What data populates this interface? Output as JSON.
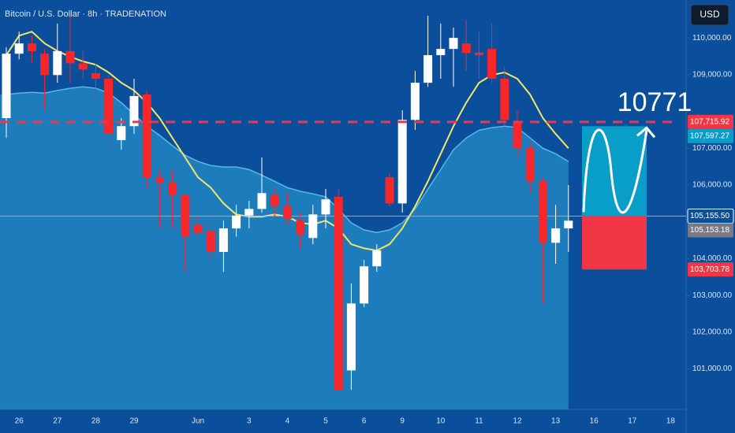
{
  "chart_data": {
    "type": "candlestick",
    "title": "Bitcoin / U.S. Dollar · 8h · TRADENATION",
    "currency": "USD",
    "annotation": "10771",
    "up_color": "#ffffff",
    "down_color": "#f7262a",
    "categories": [
      null,
      "26",
      null,
      null,
      "27",
      null,
      null,
      "28",
      null,
      null,
      "29",
      null,
      null,
      null,
      null,
      "Jun",
      null,
      null,
      null,
      "3",
      null,
      null,
      "4",
      null,
      null,
      "5",
      null,
      null,
      "6",
      null,
      null,
      "9",
      null,
      null,
      "10",
      null,
      null,
      "11",
      null,
      null,
      "12",
      null,
      null,
      "13",
      null,
      null,
      "16",
      null,
      null,
      "17",
      null,
      null,
      "18"
    ],
    "open": [
      107820,
      109570,
      109850,
      109570,
      108990,
      109640,
      109310,
      109040,
      108890,
      107220,
      107600,
      108460,
      106210,
      106060,
      105720,
      104920,
      104750,
      104180,
      104820,
      105170,
      105350,
      105740,
      105420,
      105030,
      104560,
      105200,
      105680,
      100960,
      102780,
      103790,
      106210,
      105500,
      107770,
      108780,
      109530,
      109700,
      109850,
      109600,
      109700,
      108890,
      107710,
      107000,
      106100,
      104430,
      104820,
      null,
      null,
      null,
      null,
      null,
      null,
      null,
      null
    ],
    "high": [
      109740,
      110170,
      110060,
      109700,
      110390,
      110600,
      109640,
      109310,
      108990,
      107820,
      108890,
      108570,
      106420,
      106420,
      105780,
      105140,
      104930,
      105030,
      105460,
      105570,
      106750,
      105890,
      105780,
      105250,
      105460,
      105890,
      105890,
      103320,
      103960,
      104390,
      106320,
      108030,
      109100,
      110600,
      110390,
      110280,
      110490,
      110170,
      110390,
      109210,
      108030,
      107170,
      106210,
      105460,
      106000,
      null,
      null,
      null,
      null,
      null,
      null,
      null,
      null
    ],
    "low": [
      107280,
      109420,
      109310,
      108030,
      108780,
      108780,
      108890,
      108030,
      106960,
      106960,
      107390,
      105890,
      104820,
      104820,
      103640,
      104600,
      103960,
      103640,
      104600,
      104820,
      105250,
      105140,
      104930,
      104280,
      104390,
      104820,
      100430,
      100430,
      102680,
      103640,
      105420,
      105250,
      107500,
      108670,
      108890,
      108670,
      109100,
      108890,
      108780,
      107600,
      106750,
      105780,
      102780,
      103860,
      104180,
      null,
      null,
      null,
      null,
      null,
      null,
      null,
      null
    ],
    "close": [
      109570,
      109850,
      109640,
      108990,
      109640,
      109310,
      109140,
      108890,
      107390,
      107600,
      108420,
      106210,
      106060,
      105720,
      104600,
      104710,
      104180,
      104820,
      105170,
      105350,
      105780,
      105420,
      105080,
      104650,
      105200,
      105610,
      100430,
      102780,
      103790,
      104220,
      105500,
      107770,
      108780,
      109530,
      109700,
      110000,
      109590,
      109530,
      108890,
      107770,
      107000,
      106100,
      104430,
      104820,
      105030,
      null,
      null,
      null,
      null,
      null,
      null,
      null,
      null
    ],
    "indicators": [
      {
        "kind": "area",
        "color": "#5ab8e6",
        "values": [
          108460,
          108500,
          108520,
          108500,
          108570,
          108630,
          108670,
          108630,
          108500,
          108240,
          107920,
          107600,
          107350,
          107070,
          106810,
          106640,
          106530,
          106490,
          106490,
          106420,
          106270,
          106100,
          105930,
          105830,
          105760,
          105680,
          105350,
          104970,
          104780,
          104710,
          104780,
          104970,
          105350,
          105890,
          106420,
          106960,
          107280,
          107490,
          107560,
          107600,
          107560,
          107280,
          107000,
          106850,
          106640,
          null,
          null,
          null,
          null,
          null,
          null,
          null,
          null
        ]
      },
      {
        "kind": "line",
        "color": "#f5e663",
        "values": [
          109530,
          110060,
          110170,
          109850,
          109640,
          109490,
          109360,
          109270,
          109060,
          108780,
          108570,
          108240,
          107820,
          107280,
          106750,
          106210,
          105930,
          105500,
          105200,
          105140,
          105140,
          105200,
          105140,
          104970,
          104930,
          105030,
          104820,
          104390,
          104280,
          104220,
          104390,
          104820,
          105420,
          106100,
          106850,
          107600,
          108240,
          108780,
          108990,
          109060,
          108890,
          108460,
          107820,
          107390,
          107000,
          null,
          null,
          null,
          null,
          null,
          null,
          null,
          null
        ]
      }
    ],
    "ylim": [
      99900,
      111030
    ],
    "yticks": [
      {
        "value": 110000,
        "label": "110,000.00"
      },
      {
        "value": 109000,
        "label": "109,000.00"
      },
      {
        "value": 107000,
        "label": "107,000.00"
      },
      {
        "value": 106000,
        "label": "106,000.00"
      },
      {
        "value": 104000,
        "label": "104,000.00"
      },
      {
        "value": 103000,
        "label": "103,000.00"
      },
      {
        "value": 102000,
        "label": "102,000.00"
      },
      {
        "value": 101000,
        "label": "101,000.00"
      }
    ],
    "price_labels": [
      {
        "value": 107715.92,
        "label": "107,715.92",
        "color": "#f23645"
      },
      {
        "value": 107597.27,
        "label": "107,597.27",
        "color": "#089ec8"
      },
      {
        "value": 105155.5,
        "label": "105,155.50",
        "color": "#0b4f98"
      },
      {
        "value": 105153.18,
        "label": "105,153.18",
        "color": "#787b86"
      },
      {
        "value": 103703.78,
        "label": "103,703.78",
        "color": "#f23645"
      }
    ]
  }
}
